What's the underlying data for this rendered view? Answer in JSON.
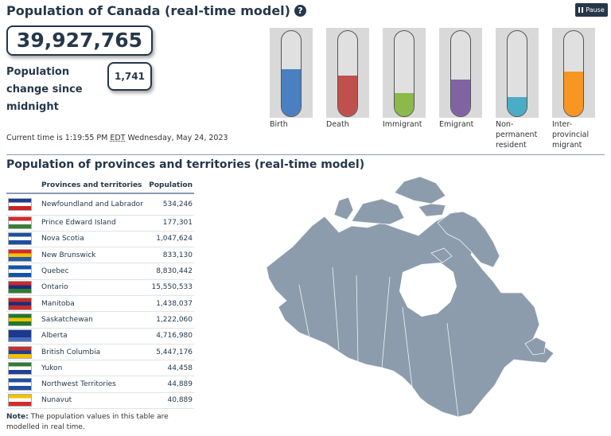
{
  "header": {
    "title": "Population of Canada (real-time model)",
    "help_icon": "question-circle-icon",
    "pause_label": "Pause",
    "pause_icon": "pause-icon"
  },
  "population": {
    "total": "39,927,765",
    "change_label": "Population change since midnight",
    "change_value": "1,741"
  },
  "time": {
    "prefix": "Current time is 1:19:55 PM ",
    "tz": "EDT",
    "suffix": " Wednesday, May 24, 2023"
  },
  "components": [
    {
      "label": "Birth",
      "fill": 0.55,
      "color": "#4a7fc1"
    },
    {
      "label": "Death",
      "fill": 0.48,
      "color": "#c0504d"
    },
    {
      "label": "Immigrant",
      "fill": 0.27,
      "color": "#8db84a"
    },
    {
      "label": "Emigrant",
      "fill": 0.43,
      "color": "#8064a2"
    },
    {
      "label": "Non-\npermanent\nresident",
      "fill": 0.22,
      "color": "#4bacc6"
    },
    {
      "label": "Inter-\nprovincial\nmigrant",
      "fill": 0.52,
      "color": "#f79622"
    }
  ],
  "provinces_section": {
    "title": "Population of provinces and territories (real-time model)",
    "columns": [
      "Provinces and territories",
      "Population"
    ],
    "rows": [
      {
        "name": "Newfoundland and Labrador",
        "value": "534,246",
        "colors": [
          "#1f3a8f",
          "#ffffff",
          "#cc2222"
        ]
      },
      {
        "name": "Prince Edward Island",
        "value": "177,301",
        "colors": [
          "#d92a2a",
          "#ffffff",
          "#3a7d3a"
        ]
      },
      {
        "name": "Nova Scotia",
        "value": "1,047,624",
        "colors": [
          "#1e4fa0",
          "#ffffff",
          "#1e4fa0"
        ]
      },
      {
        "name": "New Brunswick",
        "value": "833,130",
        "colors": [
          "#d42b2b",
          "#f5c400",
          "#2a5aa8"
        ]
      },
      {
        "name": "Quebec",
        "value": "8,830,442",
        "colors": [
          "#1155aa",
          "#ffffff",
          "#1155aa"
        ]
      },
      {
        "name": "Ontario",
        "value": "15,550,533",
        "colors": [
          "#cc2a2a",
          "#1a2f7a",
          "#2e7d32"
        ]
      },
      {
        "name": "Manitoba",
        "value": "1,438,037",
        "colors": [
          "#cc2a2a",
          "#1a2f7a",
          "#cc2a2a"
        ]
      },
      {
        "name": "Saskatchewan",
        "value": "1,222,060",
        "colors": [
          "#1f7a2e",
          "#f2c200",
          "#1f7a2e"
        ]
      },
      {
        "name": "Alberta",
        "value": "4,716,980",
        "colors": [
          "#1a3a8f",
          "#1a3a8f",
          "#4a6dc0"
        ]
      },
      {
        "name": "British Columbia",
        "value": "5,447,176",
        "colors": [
          "#c8302b",
          "#1f3f8f",
          "#f2c200"
        ]
      },
      {
        "name": "Yukon",
        "value": "44,458",
        "colors": [
          "#2e7d32",
          "#ffffff",
          "#1f3f8f"
        ]
      },
      {
        "name": "Northwest Territories",
        "value": "44,889",
        "colors": [
          "#1f4fa0",
          "#ffffff",
          "#1f4fa0"
        ]
      },
      {
        "name": "Nunavut",
        "value": "40,889",
        "colors": [
          "#f2c200",
          "#ffffff",
          "#d42b2b"
        ]
      }
    ],
    "note_label": "Note:",
    "note_text": " The population values in this table are modelled in real time."
  }
}
